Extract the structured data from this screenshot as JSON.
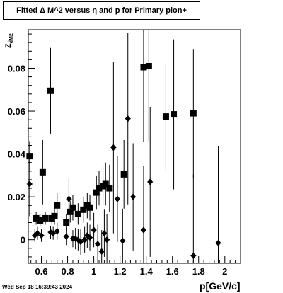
{
  "title": "Fitted Δ M^2 versus η and p for Primary pion+",
  "footer_timestamp": "Wed Sep 18 16:39:43 2024",
  "chart_data": {
    "type": "scatter",
    "title": "Fitted Δ M^2 versus η and p for Primary pion+",
    "xlabel": "p[GeV/c]",
    "ylabel_main": "Z",
    "ylabel_sub": "dM2",
    "xlim": [
      0.5,
      2.12
    ],
    "ylim": [
      -0.011,
      0.098
    ],
    "x_ticks": [
      {
        "value": 0.6,
        "label": "0.6"
      },
      {
        "value": 0.8,
        "label": "0.8"
      },
      {
        "value": 1.0,
        "label": "1"
      },
      {
        "value": 1.2,
        "label": "1.2"
      },
      {
        "value": 1.4,
        "label": "1.4"
      },
      {
        "value": 1.6,
        "label": "1.6"
      },
      {
        "value": 1.8,
        "label": "1.8"
      },
      {
        "value": 2.0,
        "label": "2"
      }
    ],
    "y_ticks": [
      {
        "value": 0.0,
        "label": "0"
      },
      {
        "value": 0.02,
        "label": "0.02"
      },
      {
        "value": 0.04,
        "label": "0.04"
      },
      {
        "value": 0.06,
        "label": "0.06"
      },
      {
        "value": 0.08,
        "label": "0.08"
      }
    ],
    "grid": false,
    "series": [
      {
        "marker": "square",
        "points": [
          {
            "x": 0.51,
            "y": 0.039,
            "err": 0.007
          },
          {
            "x": 0.56,
            "y": 0.01,
            "err": 0.003
          },
          {
            "x": 0.59,
            "y": 0.009,
            "err": 0.003
          },
          {
            "x": 0.61,
            "y": 0.0315,
            "err": 0.015
          },
          {
            "x": 0.63,
            "y": 0.01,
            "err": 0.003
          },
          {
            "x": 0.67,
            "y": 0.0695,
            "err": 0.02
          },
          {
            "x": 0.68,
            "y": 0.01,
            "err": 0.003
          },
          {
            "x": 0.7,
            "y": 0.011,
            "err": 0.004
          },
          {
            "x": 0.72,
            "y": 0.016,
            "err": 0.006
          },
          {
            "x": 0.79,
            "y": 0.008,
            "err": 0.004
          },
          {
            "x": 0.82,
            "y": 0.013,
            "err": 0.005
          },
          {
            "x": 0.84,
            "y": 0.015,
            "err": 0.006
          },
          {
            "x": 0.88,
            "y": 0.012,
            "err": 0.005
          },
          {
            "x": 0.92,
            "y": 0.014,
            "err": 0.006
          },
          {
            "x": 0.95,
            "y": 0.016,
            "err": 0.006
          },
          {
            "x": 0.97,
            "y": 0.015,
            "err": 0.006
          },
          {
            "x": 1.02,
            "y": 0.022,
            "err": 0.008
          },
          {
            "x": 1.04,
            "y": 0.024,
            "err": 0.008
          },
          {
            "x": 1.07,
            "y": 0.025,
            "err": 0.009
          },
          {
            "x": 1.09,
            "y": 0.026,
            "err": 0.01
          },
          {
            "x": 1.12,
            "y": 0.024,
            "err": 0.011
          },
          {
            "x": 1.23,
            "y": 0.0305,
            "err": 0.016
          },
          {
            "x": 1.38,
            "y": 0.0805,
            "err": 0.035
          },
          {
            "x": 1.42,
            "y": 0.081,
            "err": 0.035
          },
          {
            "x": 1.55,
            "y": 0.0575,
            "err": 0.025
          },
          {
            "x": 1.61,
            "y": 0.0585,
            "err": 0.035
          },
          {
            "x": 1.76,
            "y": 0.059,
            "err": 0.03
          }
        ]
      },
      {
        "marker": "diamond",
        "points": [
          {
            "x": 0.51,
            "y": 0.026,
            "err": 0.015
          },
          {
            "x": 0.55,
            "y": 0.002,
            "err": 0.003
          },
          {
            "x": 0.57,
            "y": 0.003,
            "err": 0.003
          },
          {
            "x": 0.6,
            "y": 0.002,
            "err": 0.003
          },
          {
            "x": 0.67,
            "y": 0.0035,
            "err": 0.003
          },
          {
            "x": 0.69,
            "y": 0.003,
            "err": 0.003
          },
          {
            "x": 0.72,
            "y": 0.004,
            "err": 0.004
          },
          {
            "x": 0.79,
            "y": 0.0015,
            "err": 0.004
          },
          {
            "x": 0.81,
            "y": 0.019,
            "err": 0.01
          },
          {
            "x": 0.84,
            "y": 0.0005,
            "err": 0.004
          },
          {
            "x": 0.86,
            "y": 0.0005,
            "err": 0.005
          },
          {
            "x": 0.88,
            "y": 0.0,
            "err": 0.005
          },
          {
            "x": 0.9,
            "y": -0.001,
            "err": 0.006
          },
          {
            "x": 0.93,
            "y": 0.0,
            "err": 0.006
          },
          {
            "x": 0.95,
            "y": 0.002,
            "err": 0.006
          },
          {
            "x": 0.97,
            "y": 0.001,
            "err": 0.006
          },
          {
            "x": 1.0,
            "y": 0.0045,
            "err": 0.008
          },
          {
            "x": 1.03,
            "y": -0.002,
            "err": 0.009
          },
          {
            "x": 1.06,
            "y": -0.0055,
            "err": 0.01
          },
          {
            "x": 1.08,
            "y": 0.003,
            "err": 0.011
          },
          {
            "x": 1.1,
            "y": 0.0,
            "err": 0.012
          },
          {
            "x": 1.15,
            "y": 0.043,
            "err": 0.04
          },
          {
            "x": 1.18,
            "y": 0.019,
            "err": 0.02
          },
          {
            "x": 1.22,
            "y": -0.0005,
            "err": 0.015
          },
          {
            "x": 1.26,
            "y": 0.0565,
            "err": 0.04
          },
          {
            "x": 1.3,
            "y": 0.02,
            "err": 0.025
          },
          {
            "x": 1.38,
            "y": 0.0045,
            "err": 0.03
          },
          {
            "x": 1.43,
            "y": 0.027,
            "err": 0.035
          },
          {
            "x": 1.76,
            "y": -0.0075,
            "err": 0.038
          },
          {
            "x": 1.95,
            "y": -0.0015,
            "err": 0.045
          }
        ]
      }
    ]
  }
}
